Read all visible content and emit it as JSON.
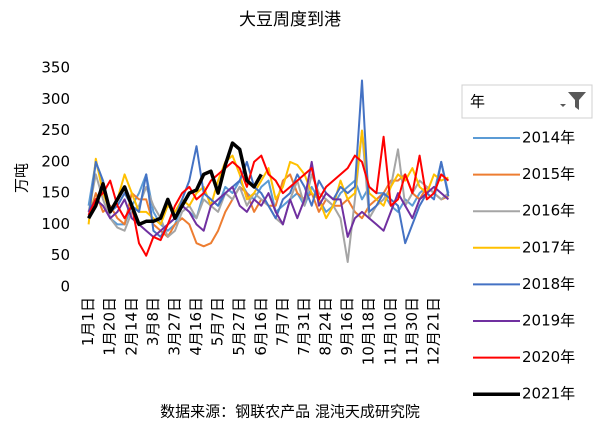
{
  "chart_data": {
    "type": "line",
    "title": "大豆周度到港",
    "y_label": "万吨",
    "source": "数据来源：钢联农产品 混沌天成研究院",
    "legend_title": "年",
    "categories": [
      "1月1日",
      null,
      null,
      "1月20日",
      null,
      null,
      "2月14日",
      null,
      null,
      "3月8日",
      null,
      null,
      "3月27日",
      null,
      null,
      "4月16日",
      null,
      null,
      "5月7日",
      null,
      null,
      "5月27日",
      null,
      null,
      "6月16日",
      null,
      null,
      "7月7日",
      null,
      null,
      "7月31日",
      null,
      null,
      "8月24日",
      null,
      null,
      "9月16日",
      null,
      null,
      "10月18日",
      null,
      null,
      "11月10日",
      null,
      null,
      "11月30日",
      null,
      null,
      "12月21日",
      null,
      null
    ],
    "ylim": [
      0,
      350
    ],
    "yticks": [
      0,
      50,
      100,
      150,
      200,
      250,
      300,
      350
    ],
    "grid": false,
    "series": [
      {
        "name": "2014年",
        "color": "#5b9bd5",
        "values": [
          130,
          200,
          160,
          110,
          100,
          100,
          130,
          150,
          180,
          120,
          100,
          90,
          100,
          130,
          120,
          110,
          150,
          140,
          130,
          160,
          150,
          170,
          150,
          140,
          160,
          170,
          120,
          130,
          140,
          150,
          130,
          160,
          140,
          120,
          130,
          150,
          160,
          170,
          140,
          160,
          150,
          150,
          130,
          120,
          140,
          130,
          150,
          160,
          150,
          200,
          150
        ]
      },
      {
        "name": "2015年",
        "color": "#ed7d31",
        "values": [
          110,
          150,
          120,
          130,
          110,
          100,
          150,
          140,
          140,
          100,
          90,
          80,
          100,
          110,
          100,
          70,
          65,
          70,
          90,
          120,
          140,
          160,
          150,
          120,
          140,
          130,
          130,
          170,
          180,
          150,
          140,
          150,
          120,
          140,
          130,
          130,
          140,
          120,
          110,
          130,
          140,
          150,
          170,
          170,
          180,
          150,
          140,
          160,
          150,
          140,
          145
        ]
      },
      {
        "name": "2016年",
        "color": "#a5a5a5",
        "values": [
          120,
          180,
          140,
          110,
          95,
          90,
          120,
          130,
          160,
          130,
          110,
          80,
          90,
          120,
          130,
          110,
          140,
          130,
          120,
          150,
          140,
          160,
          130,
          150,
          140,
          130,
          110,
          100,
          140,
          170,
          130,
          180,
          150,
          140,
          130,
          110,
          40,
          140,
          250,
          110,
          130,
          140,
          160,
          220,
          130,
          150,
          170,
          160,
          150,
          140,
          150
        ]
      },
      {
        "name": "2017年",
        "color": "#ffc000",
        "values": [
          100,
          205,
          150,
          120,
          140,
          180,
          150,
          120,
          120,
          110,
          100,
          130,
          120,
          140,
          130,
          150,
          160,
          130,
          170,
          200,
          210,
          180,
          140,
          150,
          170,
          190,
          140,
          160,
          200,
          195,
          180,
          150,
          140,
          110,
          130,
          170,
          140,
          150,
          250,
          150,
          140,
          130,
          160,
          180,
          170,
          190,
          160,
          150,
          180,
          170,
          175
        ]
      },
      {
        "name": "2018年",
        "color": "#4472c4",
        "values": [
          110,
          200,
          170,
          120,
          130,
          150,
          130,
          120,
          180,
          90,
          80,
          100,
          110,
          140,
          170,
          225,
          150,
          140,
          130,
          150,
          160,
          170,
          200,
          160,
          150,
          130,
          110,
          140,
          150,
          180,
          160,
          130,
          170,
          150,
          140,
          160,
          150,
          160,
          330,
          120,
          130,
          150,
          140,
          130,
          70,
          100,
          130,
          150,
          140,
          200,
          145
        ]
      },
      {
        "name": "2019年",
        "color": "#7030a0",
        "values": [
          120,
          140,
          130,
          110,
          120,
          140,
          110,
          100,
          90,
          80,
          90,
          100,
          110,
          130,
          120,
          100,
          90,
          130,
          140,
          150,
          160,
          130,
          120,
          140,
          130,
          150,
          120,
          100,
          140,
          110,
          140,
          200,
          130,
          150,
          140,
          140,
          80,
          110,
          120,
          110,
          100,
          90,
          120,
          150,
          130,
          110,
          140,
          150,
          160,
          150,
          140
        ]
      },
      {
        "name": "2020年",
        "color": "#ff0000",
        "values": [
          115,
          140,
          150,
          170,
          130,
          110,
          130,
          70,
          50,
          80,
          75,
          100,
          130,
          150,
          160,
          140,
          150,
          170,
          180,
          190,
          200,
          190,
          160,
          200,
          210,
          180,
          170,
          150,
          160,
          170,
          180,
          190,
          140,
          160,
          170,
          180,
          190,
          210,
          200,
          160,
          150,
          240,
          130,
          140,
          180,
          150,
          210,
          140,
          150,
          180,
          170
        ]
      },
      {
        "name": "2021年",
        "color": "#000000",
        "values": [
          110,
          130,
          165,
          120,
          140,
          160,
          130,
          100,
          105,
          105,
          110,
          140,
          110,
          130,
          150,
          155,
          180,
          185,
          150,
          195,
          230,
          220,
          170,
          160,
          180,
          null,
          null,
          null,
          null,
          null,
          null,
          null,
          null,
          null,
          null,
          null,
          null,
          null,
          null,
          null,
          null,
          null,
          null,
          null,
          null,
          null,
          null,
          null,
          null,
          null,
          null
        ]
      }
    ]
  }
}
